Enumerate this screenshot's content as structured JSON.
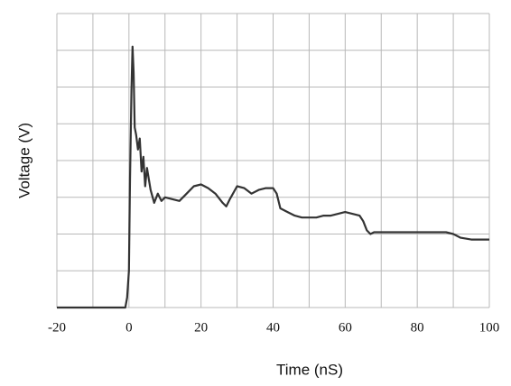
{
  "chart_data": {
    "type": "line",
    "xlabel": "Time (nS)",
    "ylabel": "Voltage (V)",
    "xlim": [
      -20,
      100
    ],
    "xticks": [
      -20,
      0,
      20,
      40,
      60,
      80,
      100
    ],
    "xgrid": [
      -20,
      -10,
      0,
      10,
      20,
      30,
      40,
      50,
      60,
      70,
      80,
      90,
      100
    ],
    "ylim": [
      0,
      8
    ],
    "ygrid": [
      0,
      1,
      2,
      3,
      4,
      5,
      6,
      7,
      8
    ],
    "grid": true,
    "color": "#333333",
    "x": [
      -20,
      -10,
      -1,
      -0.5,
      0,
      0.3,
      0.7,
      1,
      1.3,
      1.6,
      2,
      2.5,
      3,
      3.5,
      4,
      4.5,
      5,
      6,
      7,
      8,
      9,
      10,
      12,
      14,
      16,
      18,
      20,
      22,
      24,
      26,
      27,
      28,
      30,
      32,
      34,
      36,
      38,
      40,
      41,
      42,
      44,
      46,
      48,
      50,
      52,
      54,
      56,
      58,
      60,
      62,
      64,
      65,
      66,
      67,
      68,
      70,
      75,
      80,
      85,
      88,
      90,
      92,
      95,
      98,
      100
    ],
    "values": [
      0,
      0,
      0,
      0.27,
      1.0,
      3.46,
      5.9,
      7.1,
      6.4,
      4.9,
      4.7,
      4.3,
      4.6,
      3.7,
      4.1,
      3.3,
      3.8,
      3.2,
      2.85,
      3.1,
      2.9,
      3.0,
      2.95,
      2.9,
      3.1,
      3.3,
      3.35,
      3.25,
      3.1,
      2.85,
      2.75,
      2.95,
      3.3,
      3.25,
      3.1,
      3.2,
      3.25,
      3.25,
      3.1,
      2.7,
      2.6,
      2.5,
      2.45,
      2.45,
      2.45,
      2.5,
      2.5,
      2.55,
      2.6,
      2.55,
      2.5,
      2.35,
      2.1,
      2.0,
      2.05,
      2.05,
      2.05,
      2.05,
      2.05,
      2.05,
      2.0,
      1.9,
      1.85,
      1.85,
      1.85
    ]
  }
}
